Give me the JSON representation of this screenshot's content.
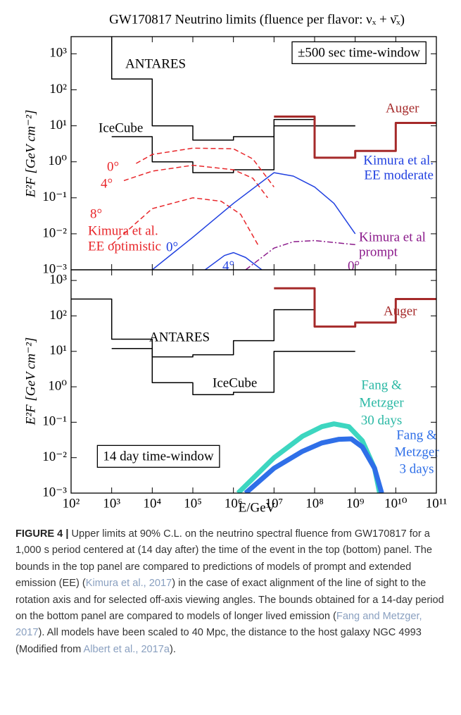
{
  "chart_data": [
    {
      "type": "line",
      "title": "GW170817 Neutrino limits (fluence per flavor: νₓ + ν̄ₓ)",
      "ylabel": "E²F  [GeV cm⁻²]",
      "log_x": true,
      "log_y": true,
      "xlim": [
        100,
        100000000000
      ],
      "ylim": [
        0.001,
        3000
      ],
      "xticks": [
        100,
        1000,
        10000,
        100000,
        1000000,
        10000000,
        100000000,
        1000000000,
        10000000000,
        100000000000
      ],
      "yticks": [
        {
          "value": 0.001,
          "label": "10⁻³"
        },
        {
          "value": 0.01,
          "label": "10⁻²"
        },
        {
          "value": 0.1,
          "label": "10⁻¹"
        },
        {
          "value": 1,
          "label": "10⁰"
        },
        {
          "value": 10,
          "label": "10¹"
        },
        {
          "value": 100,
          "label": "10²"
        },
        {
          "value": 1000,
          "label": "10³"
        }
      ],
      "series": [
        {
          "name": "ANTARES",
          "color": "#000000",
          "style": "solid",
          "width": 1.5,
          "x": [
            1000,
            1000,
            10000,
            10000,
            100000,
            100000,
            1000000,
            1000000,
            10000000,
            10000000,
            100000000,
            100000000,
            1000000000
          ],
          "values": [
            3000,
            200,
            200,
            10,
            10,
            4,
            4,
            5,
            5,
            15,
            15,
            10,
            10
          ]
        },
        {
          "name": "IceCube",
          "color": "#000000",
          "style": "solid",
          "width": 1.5,
          "x": [
            1000,
            10000,
            10000,
            100000,
            100000,
            1000000,
            1000000,
            10000000,
            10000000,
            1000000000
          ],
          "values": [
            5,
            5,
            1,
            1,
            0.5,
            0.5,
            0.6,
            0.6,
            10,
            10
          ]
        },
        {
          "name": "Auger",
          "color": "#a52a2a",
          "style": "solid",
          "width": 3,
          "x": [
            10000000,
            100000000,
            100000000,
            1000000000,
            1000000000,
            10000000000,
            10000000000,
            100000000000
          ],
          "values": [
            18,
            18,
            1.3,
            1.3,
            2,
            2,
            12,
            12
          ]
        },
        {
          "name": "0°",
          "color": "#e8262a",
          "style": "dashed",
          "width": 1.5,
          "x": [
            4000,
            10000,
            100000,
            1000000,
            3000000,
            10000000
          ],
          "values": [
            0.9,
            1.6,
            2.4,
            2.3,
            1.2,
            0.2
          ]
        },
        {
          "name": "4°",
          "color": "#e8262a",
          "style": "dashed",
          "width": 1.5,
          "x": [
            2000,
            10000,
            100000,
            1000000,
            3000000,
            7000000
          ],
          "values": [
            0.3,
            0.55,
            0.8,
            0.6,
            0.35,
            0.1
          ]
        },
        {
          "name": "8°",
          "color": "#e8262a",
          "style": "dashed",
          "width": 1.5,
          "x": [
            1000,
            10000,
            100000,
            500000,
            1500000,
            4000000
          ],
          "values": [
            0.005,
            0.05,
            0.1,
            0.08,
            0.035,
            0.005
          ]
        },
        {
          "name": "0°",
          "color": "#2040e0",
          "style": "solid",
          "width": 1.5,
          "x": [
            10000,
            100000,
            1000000,
            10000000,
            30000000,
            100000000,
            300000000,
            1000000000
          ],
          "values": [
            0.001,
            0.008,
            0.07,
            0.5,
            0.4,
            0.2,
            0.07,
            0.01
          ]
        },
        {
          "name": "4°",
          "color": "#2040e0",
          "style": "solid",
          "width": 1.5,
          "x": [
            200000,
            600000,
            1000000,
            2000000,
            5000000
          ],
          "values": [
            0.001,
            0.0025,
            0.003,
            0.0022,
            0.001
          ]
        },
        {
          "name": "0°",
          "color": "#8b1a8b",
          "style": "dashdot",
          "width": 1.5,
          "x": [
            2000000,
            10000000,
            30000000,
            100000000,
            1000000000
          ],
          "values": [
            0.001,
            0.004,
            0.006,
            0.0065,
            0.005
          ]
        }
      ],
      "annotations": [
        "Kimura et al.",
        "EE optimistic",
        "Kimura et al.",
        "EE moderate",
        "Kimura et al",
        "prompt",
        "±500 sec time-window"
      ]
    },
    {
      "type": "line",
      "xlabel": "E/GeV",
      "ylabel": "E²F  [GeV cm⁻²]",
      "log_x": true,
      "log_y": true,
      "xlim": [
        100,
        100000000000
      ],
      "ylim": [
        0.001,
        2000
      ],
      "xticks": [
        {
          "value": 100,
          "label": "10²"
        },
        {
          "value": 1000,
          "label": "10³"
        },
        {
          "value": 10000,
          "label": "10⁴"
        },
        {
          "value": 100000,
          "label": "10⁵"
        },
        {
          "value": 1000000,
          "label": "10⁶"
        },
        {
          "value": 10000000,
          "label": "10⁷"
        },
        {
          "value": 100000000,
          "label": "10⁸"
        },
        {
          "value": 1000000000,
          "label": "10⁹"
        },
        {
          "value": 10000000000,
          "label": "10¹⁰"
        },
        {
          "value": 100000000000,
          "label": "10¹¹"
        }
      ],
      "yticks": [
        {
          "value": 0.001,
          "label": "10⁻³"
        },
        {
          "value": 0.01,
          "label": "10⁻²"
        },
        {
          "value": 0.1,
          "label": "10⁻¹"
        },
        {
          "value": 1,
          "label": "10⁰"
        },
        {
          "value": 10,
          "label": "10¹"
        },
        {
          "value": 100,
          "label": "10²"
        },
        {
          "value": 1000,
          "label": "10³"
        }
      ],
      "series": [
        {
          "name": "ANTARES",
          "color": "#000000",
          "style": "solid",
          "width": 1.5,
          "x": [
            100,
            1000,
            1000,
            10000,
            10000,
            100000,
            100000,
            1000000,
            1000000,
            10000000,
            10000000,
            100000000
          ],
          "values": [
            300,
            300,
            22,
            22,
            7,
            7,
            8,
            8,
            20,
            20,
            150,
            150
          ]
        },
        {
          "name": "IceCube",
          "color": "#000000",
          "style": "solid",
          "width": 1.5,
          "x": [
            1000,
            10000,
            10000,
            100000,
            100000,
            1000000,
            1000000,
            10000000,
            10000000,
            1000000000
          ],
          "values": [
            12,
            12,
            1.3,
            1.3,
            0.6,
            0.6,
            0.7,
            0.7,
            10,
            10
          ]
        },
        {
          "name": "Auger",
          "color": "#a52a2a",
          "style": "solid",
          "width": 3,
          "x": [
            10000000,
            100000000,
            100000000,
            1000000000,
            1000000000,
            10000000000,
            10000000000,
            100000000000
          ],
          "values": [
            600,
            600,
            50,
            50,
            65,
            65,
            300,
            300
          ]
        },
        {
          "color": "#3dd6c0",
          "style": "solid",
          "width": 7,
          "x": [
            1300000,
            10000000,
            50000000,
            150000000,
            300000000,
            700000000,
            1500000000,
            3000000000,
            4000000000
          ],
          "values": [
            0.001,
            0.01,
            0.04,
            0.075,
            0.09,
            0.075,
            0.03,
            0.005,
            0.001
          ]
        },
        {
          "color": "#2f6fe8",
          "style": "solid",
          "width": 7,
          "x": [
            2000000,
            10000000,
            50000000,
            150000000,
            400000000,
            800000000,
            1500000000,
            3000000000,
            4500000000
          ],
          "values": [
            0.001,
            0.005,
            0.015,
            0.026,
            0.033,
            0.034,
            0.02,
            0.005,
            0.001
          ]
        }
      ],
      "annotations": [
        "Fang &",
        "Metzger",
        "30 days",
        "Fang &",
        "Metzger",
        "3 days",
        "14 day time-window"
      ]
    }
  ],
  "caption": {
    "label": "FIGURE 4 |",
    "parts": [
      " Upper limits at 90% C.L. on the neutrino spectral fluence from GW170817 for a 1,000 s period centered at (14 day after) the time of the event in the top (bottom) panel. The bounds in the top panel are compared to predictions of models of prompt and extended emission (EE) (",
      "Kimura et al., 2017",
      ") in the case of exact alignment of the line of sight to the rotation axis and for selected off-axis viewing angles. The bounds obtained for a 14-day period on the bottom panel are compared to models of longer lived emission (",
      "Fang and Metzger, 2017",
      "). All models have been scaled to 40 Mpc, the distance to the host galaxy NGC 4993 (Modified from ",
      "Albert et al., 2017a",
      ")."
    ]
  }
}
